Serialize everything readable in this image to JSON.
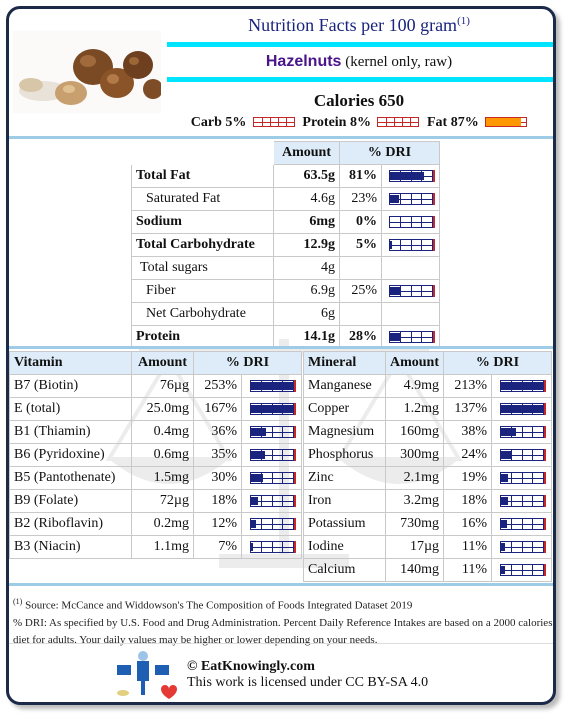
{
  "header": {
    "title": "Nutrition Facts per 100 gram",
    "title_note": "(1)",
    "food_name": "Hazelnuts",
    "food_desc": "(kernel only, raw)"
  },
  "calories": {
    "label": "Calories",
    "value": "650"
  },
  "macros": [
    {
      "label": "Carb",
      "value": "5%",
      "fraction": 0.05
    },
    {
      "label": "Protein",
      "value": "8%",
      "fraction": 0.08
    },
    {
      "label": "Fat",
      "value": "87%",
      "fraction": 0.87
    }
  ],
  "main_table": {
    "headers": [
      "Amount",
      "% DRI"
    ],
    "rows": [
      {
        "name": "Total Fat",
        "amount": "63.5g",
        "dri": "81%",
        "fraction": 0.81,
        "bold": true,
        "indent": 0
      },
      {
        "name": "Saturated Fat",
        "amount": "4.6g",
        "dri": "23%",
        "fraction": 0.23,
        "bold": false,
        "indent": 1
      },
      {
        "name": "Sodium",
        "amount": "6mg",
        "dri": "0%",
        "fraction": 0.0,
        "bold": true,
        "indent": 0
      },
      {
        "name": "Total Carbohydrate",
        "amount": "12.9g",
        "dri": "5%",
        "fraction": 0.05,
        "bold": true,
        "indent": 0
      },
      {
        "name": "Total sugars",
        "amount": "4g",
        "dri": "",
        "fraction": null,
        "bold": false,
        "indent": 2
      },
      {
        "name": "Fiber",
        "amount": "6.9g",
        "dri": "25%",
        "fraction": 0.25,
        "bold": false,
        "indent": 1
      },
      {
        "name": "Net Carbohydrate",
        "amount": "6g",
        "dri": "",
        "fraction": null,
        "bold": false,
        "indent": 1
      },
      {
        "name": "Protein",
        "amount": "14.1g",
        "dri": "28%",
        "fraction": 0.28,
        "bold": true,
        "indent": 0
      }
    ]
  },
  "vitamins": {
    "headers": [
      "Vitamin",
      "Amount",
      "% DRI"
    ],
    "rows": [
      {
        "name": "B7 (Biotin)",
        "amount": "76µg",
        "dri": "253%",
        "fraction": 1.0
      },
      {
        "name": "E (total)",
        "amount": "25.0mg",
        "dri": "167%",
        "fraction": 1.0
      },
      {
        "name": "B1 (Thiamin)",
        "amount": "0.4mg",
        "dri": "36%",
        "fraction": 0.36
      },
      {
        "name": "B6 (Pyridoxine)",
        "amount": "0.6mg",
        "dri": "35%",
        "fraction": 0.35
      },
      {
        "name": "B5 (Pantothenate)",
        "amount": "1.5mg",
        "dri": "30%",
        "fraction": 0.3
      },
      {
        "name": "B9 (Folate)",
        "amount": "72µg",
        "dri": "18%",
        "fraction": 0.18
      },
      {
        "name": "B2 (Riboflavin)",
        "amount": "0.2mg",
        "dri": "12%",
        "fraction": 0.12
      },
      {
        "name": "B3 (Niacin)",
        "amount": "1.1mg",
        "dri": "7%",
        "fraction": 0.07
      }
    ]
  },
  "minerals": {
    "headers": [
      "Mineral",
      "Amount",
      "% DRI"
    ],
    "rows": [
      {
        "name": "Manganese",
        "amount": "4.9mg",
        "dri": "213%",
        "fraction": 1.0
      },
      {
        "name": "Copper",
        "amount": "1.2mg",
        "dri": "137%",
        "fraction": 1.0
      },
      {
        "name": "Magnesium",
        "amount": "160mg",
        "dri": "38%",
        "fraction": 0.38
      },
      {
        "name": "Phosphorus",
        "amount": "300mg",
        "dri": "24%",
        "fraction": 0.24
      },
      {
        "name": "Zinc",
        "amount": "2.1mg",
        "dri": "19%",
        "fraction": 0.19
      },
      {
        "name": "Iron",
        "amount": "3.2mg",
        "dri": "18%",
        "fraction": 0.18
      },
      {
        "name": "Potassium",
        "amount": "730mg",
        "dri": "16%",
        "fraction": 0.16
      },
      {
        "name": "Iodine",
        "amount": "17µg",
        "dri": "11%",
        "fraction": 0.11
      },
      {
        "name": "Calcium",
        "amount": "140mg",
        "dri": "11%",
        "fraction": 0.11
      }
    ]
  },
  "footnote": {
    "marker": "(1)",
    "source": "Source: McCance and Widdowson's The Composition of Foods Integrated Dataset 2019",
    "dri_note": "% DRI: As specified by U.S. Food and Drug Administration. Percent Daily Reference Intakes are based on a 2000 calories diet for adults. Your daily values may be higher or lower depending on your needs."
  },
  "credit": {
    "site": "© EatKnowingly.com",
    "license": "This work is licensed under CC BY-SA 4.0"
  },
  "colors": {
    "title": "#1a237e",
    "food_name": "#4a148c",
    "accent_bar": "#00e5ff",
    "dri_bar": "#1a237e",
    "fat_bar": "#ff9800",
    "header_bg": "#ddecf8"
  }
}
